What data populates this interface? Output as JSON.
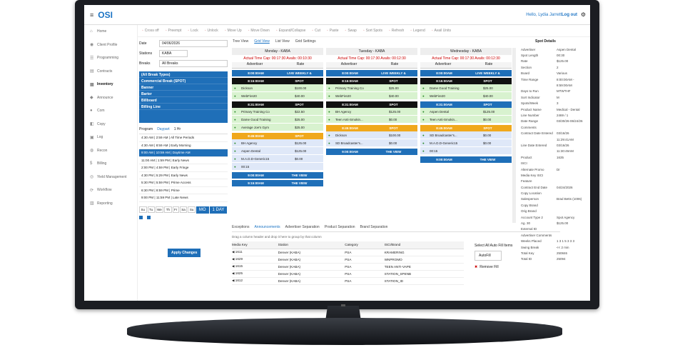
{
  "app": {
    "menu_icon": "≡",
    "logo": "OSI",
    "user": "Hello, Lydia Jarrett",
    "logout": "Log out"
  },
  "sidebar": [
    {
      "label": "Home",
      "icon": "⌂"
    },
    {
      "label": "Client Profile",
      "icon": "◉"
    },
    {
      "label": "Programming",
      "icon": "☰"
    },
    {
      "label": "Contracts",
      "icon": "▤"
    },
    {
      "label": "Inventory",
      "icon": "▦",
      "active": true
    },
    {
      "label": "Announce",
      "icon": "◆"
    },
    {
      "label": "Com",
      "icon": "●"
    },
    {
      "label": "Copy",
      "icon": "◧"
    },
    {
      "label": "Log",
      "icon": "▣"
    },
    {
      "label": "Recon",
      "icon": "◍"
    },
    {
      "label": "Billing",
      "icon": "$"
    },
    {
      "label": "Yield Management",
      "icon": "◎"
    },
    {
      "label": "Workflow",
      "icon": "⟳"
    },
    {
      "label": "Reporting",
      "icon": "▥"
    }
  ],
  "toolbar": [
    "Cross off",
    "Preempt",
    "Lock",
    "Unlock",
    "Move Up",
    "Move Down",
    "Expand/Collapse",
    "Cut",
    "Paste",
    "Swap",
    "Sort Spots",
    "Refresh",
    "Legend",
    "Avail Units"
  ],
  "filters": {
    "date_label": "Date",
    "date_value": "04/06/2026",
    "stations_label": "Stations",
    "station_value": "KABA",
    "breaks_label": "Breaks",
    "breaks_value": "All Breaks",
    "break_types": [
      "(All Break Types)",
      "Commercial Break (SPOT)",
      "Banner",
      "Barter",
      "Billboard",
      "Billing Line"
    ],
    "tabs": [
      "Program",
      "Daypart",
      "1 Hr"
    ],
    "programs": [
      "4:30 AM | 2:59 AM | All Time Periods",
      "4:30 AM | 8:59 AM | Early Morning",
      "9:00 AM | 10:59 AM | Daytime AM",
      "11:00 AM | 1:59 PM | Early News",
      "2:00 PM | 4:59 PM | Early Fringe",
      "4:30 PM | 5:29 PM | Early News",
      "5:30 PM | 5:59 PM | Prime Access",
      "6:30 PM | 8:59 PM | Prime",
      "9:00 PM | 11:59 PM | Late News"
    ],
    "days": [
      "Su",
      "Tu",
      "We",
      "Th",
      "Fr",
      "Sa",
      "Su"
    ],
    "day_buttons": [
      "MO",
      "1 DAY"
    ],
    "apply": "Apply Changes"
  },
  "views": [
    "Tree View",
    "Grid View",
    "List View",
    "Grid Settings"
  ],
  "grid": {
    "header_advertiser": "Advertiser",
    "header_rate": "Rate",
    "columns": [
      {
        "day": "Monday - KABA",
        "cap": "Actual Time Cap: 00:17:30 Avails: 00:10:30",
        "blocks": [
          {
            "color": "#1f6fb8",
            "time": "8:00:00AM",
            "prog": "LIVE WEEKLY &",
            "spots": []
          },
          {
            "color": "#111",
            "time": "8:15:00AM",
            "prog": "SPOT",
            "spots": [
              [
                "Dickson",
                "$100.00"
              ],
              [
                "WebFire20",
                "$40.00"
              ]
            ]
          },
          {
            "color": "#111",
            "time": "8:31:00AM",
            "prog": "SPOT",
            "spots": [
              [
                "Primary Training Co",
                "$22.50"
              ],
              [
                "Dame Good Training",
                "$25.00"
              ],
              [
                "Average Joe's Gym",
                "$25.00"
              ]
            ]
          },
          {
            "color": "#f0a81c",
            "time": "8:45:00AM",
            "prog": "SPOT",
            "spots": [
              [
                "BH Agency",
                "$125.00"
              ],
              [
                "Aspen Dental",
                "$125.00"
              ],
              [
                "M.A.D.D-Generic15",
                "$0.00"
              ],
              [
                "00:15",
                ""
              ]
            ]
          },
          {
            "color": "#1f6fb8",
            "time": "9:00:00AM",
            "prog": "THE VIEW",
            "spots": []
          },
          {
            "color": "#1f6fb8",
            "time": "9:15:00AM",
            "prog": "THE VIEW",
            "spots": []
          }
        ]
      },
      {
        "day": "Tuesday - KABA",
        "cap": "Actual Time Cap: 00:17:30 Avails: 00:12:30",
        "blocks": [
          {
            "color": "#1f6fb8",
            "time": "8:00:00AM",
            "prog": "LIVE WEEKLY &",
            "spots": []
          },
          {
            "color": "#111",
            "time": "8:15:00AM",
            "prog": "SPOT",
            "spots": [
              [
                "Primary Training Co",
                "$25.00"
              ],
              [
                "WebFire20",
                "$40.00"
              ]
            ]
          },
          {
            "color": "#111",
            "time": "8:31:00AM",
            "prog": "SPOT",
            "spots": [
              [
                "BH Agency",
                "$125.00"
              ],
              [
                "Teen Anti-Smokin...",
                "$0.00"
              ]
            ]
          },
          {
            "color": "#f0a81c",
            "time": "8:45:00AM",
            "prog": "SPOT",
            "spots": [
              [
                "Dickson",
                "$100.00"
              ],
              [
                "SD Broadcaster's...",
                "$0.00"
              ]
            ]
          },
          {
            "color": "#1f6fb8",
            "time": "9:00:00AM",
            "prog": "THE VIEW",
            "spots": []
          }
        ]
      },
      {
        "day": "Wednesday - KABA",
        "cap": "Actual Time Cap: 00:17:30 Avails: 00:12:30",
        "blocks": [
          {
            "color": "#1f6fb8",
            "time": "8:00:00AM",
            "prog": "LIVE WEEKLY &",
            "spots": []
          },
          {
            "color": "#111",
            "time": "8:15:00AM",
            "prog": "SPOT",
            "spots": [
              [
                "Dame Good Training",
                "$25.00"
              ],
              [
                "WebFire20",
                "$40.00"
              ]
            ]
          },
          {
            "color": "#1f6fb8",
            "time": "8:31:00AM",
            "prog": "SPOT",
            "spots": [
              [
                "Aspen Dental",
                "$125.00"
              ],
              [
                "Teen Anti-Smokin...",
                "$0.00"
              ]
            ]
          },
          {
            "color": "#f0a81c",
            "time": "8:45:00AM",
            "prog": "SPOT",
            "spots": [
              [
                "SD Broadcaster's...",
                "$0.00"
              ],
              [
                "M.A.D.D-Generic15",
                "$0.00"
              ],
              [
                "00:15",
                ""
              ]
            ]
          },
          {
            "color": "#1f6fb8",
            "time": "9:00:00AM",
            "prog": "THE VIEW",
            "spots": []
          }
        ]
      }
    ]
  },
  "bottom": {
    "tabs": [
      "Exceptions",
      "Announcements",
      "Advertiser Separation",
      "Product Separation",
      "Brand Separation"
    ],
    "drag_hint": "Drag a column header and drop it here to group by that column",
    "headers": [
      "Media Key",
      "Station",
      "Category",
      "ISCI/Brand"
    ],
    "rows": [
      [
        "1611",
        "Denver (KABA)",
        "PSA",
        "KRAMERING"
      ],
      [
        "1629",
        "Denver (KABA)",
        "PSA",
        "WNPROMO"
      ],
      [
        "1615",
        "Denver (KABA)",
        "PSA",
        "TEEN ANTI-VAPE"
      ],
      [
        "1625",
        "Denver (KABA)",
        "PSA",
        "STATION_SPENB"
      ],
      [
        "1612",
        "Denver (KABA)",
        "PSA",
        "STATION_ID"
      ]
    ],
    "autofill_title": "Select All Auto Fill Items",
    "autofill": "AutoFill",
    "remove_fill": "Remove Fill"
  },
  "details": {
    "title": "Spot Details",
    "items": [
      [
        "Advertiser",
        "Aspen Dental"
      ],
      [
        "Spot Length",
        "00:30"
      ],
      [
        "Rate",
        "$125.00"
      ],
      [
        "Section",
        "2"
      ],
      [
        "Board",
        "Various"
      ],
      [
        "Time Range",
        "8:00:00AM -"
      ],
      [
        "",
        "8:59:00AM"
      ],
      [
        "Days to Run",
        "MTWTHF"
      ],
      [
        "Sort Indicator",
        "M"
      ],
      [
        "Spots/Week",
        "3"
      ],
      [
        "Product Name",
        "Medical - Dental"
      ],
      [
        "Line Number",
        "2469 / 1"
      ],
      [
        "Date Range",
        "03/30/26-06/24/26"
      ],
      [
        "Comments",
        ""
      ],
      [
        "Contract Date Entered",
        "03/16/26"
      ],
      [
        "",
        "11:29:41AM"
      ],
      [
        "Line Date Entered",
        "03/16/26"
      ],
      [
        "",
        "11:30:49AM"
      ],
      [
        "Product",
        "1635"
      ],
      [
        "ISCI",
        ""
      ],
      [
        "Alternate Promo",
        "Dr"
      ],
      [
        "Media Key ISCI",
        ""
      ],
      [
        "Feature",
        ""
      ],
      [
        "Contract End Date",
        "04/24/2026"
      ],
      [
        "Copy Location",
        ""
      ],
      [
        "Salesperson",
        "Brad Betts (1006)"
      ],
      [
        "Copy Brand",
        ""
      ],
      [
        "Orig Brand",
        ""
      ],
      [
        "Account Type 2",
        "Spot Agency"
      ],
      [
        "Ag. 30",
        "$125.00"
      ],
      [
        "External ID",
        ""
      ],
      [
        "Advertiser Comments",
        ""
      ],
      [
        "Weeks Placed",
        "1 3 1 5 3 3 3"
      ],
      [
        "Swing Break",
        "<< 2 min"
      ],
      [
        "Total Key",
        "250846"
      ],
      [
        "Total ID",
        "25094"
      ]
    ]
  }
}
